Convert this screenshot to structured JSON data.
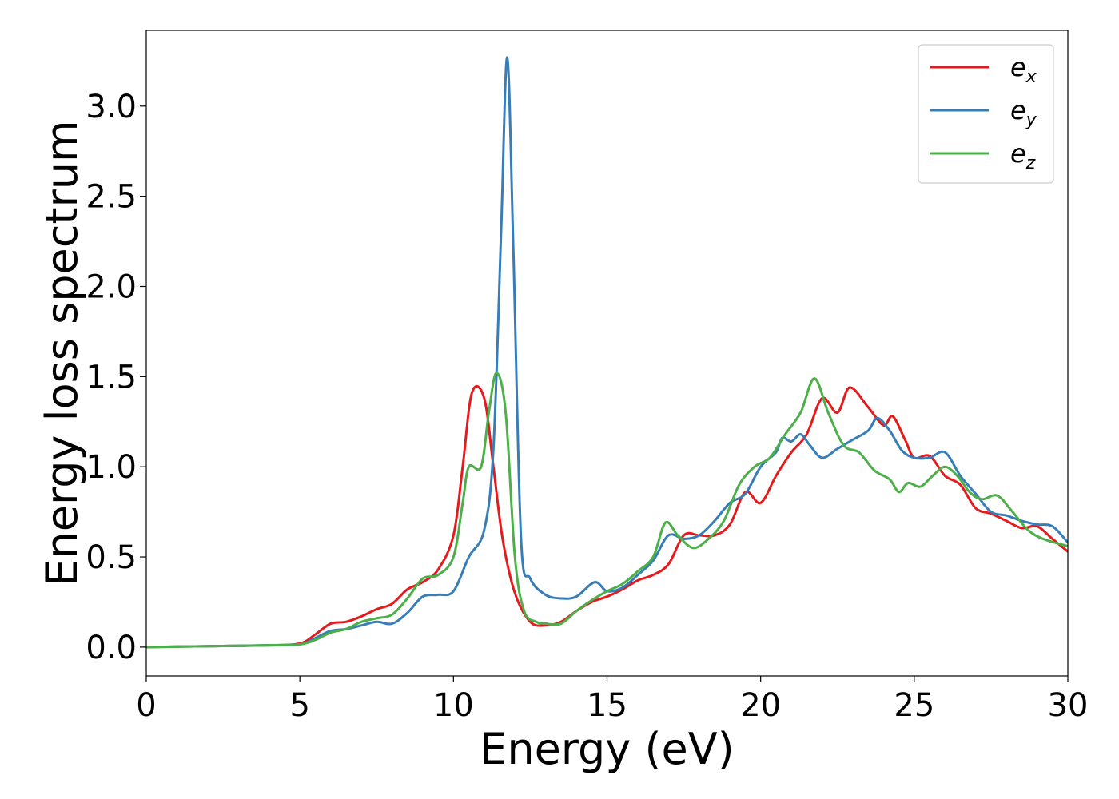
{
  "chart_data": {
    "type": "line",
    "title": "",
    "xlabel": "Energy (eV)",
    "ylabel": "Energy loss spectrum",
    "xlim": [
      0,
      30
    ],
    "ylim": [
      -0.16,
      3.42
    ],
    "xticks": [
      0,
      5,
      10,
      15,
      20,
      25,
      30
    ],
    "xtick_labels": [
      "0",
      "5",
      "10",
      "15",
      "20",
      "25",
      "30"
    ],
    "yticks": [
      0.0,
      0.5,
      1.0,
      1.5,
      2.0,
      2.5,
      3.0
    ],
    "ytick_labels": [
      "0.0",
      "0.5",
      "1.0",
      "1.5",
      "2.0",
      "2.5",
      "3.0"
    ],
    "grid": false,
    "legend_position": "top-right",
    "series": [
      {
        "name": "e_x",
        "legend_main": "e",
        "legend_sub": "x",
        "color": "#e41a1c",
        "x": [
          0,
          2,
          4,
          5,
          5.5,
          6,
          6.5,
          7,
          7.5,
          8,
          8.5,
          9,
          9.5,
          10,
          10.3,
          10.6,
          11,
          11.3,
          11.6,
          12,
          12.5,
          13,
          13.5,
          14,
          14.5,
          15,
          15.5,
          16,
          16.5,
          17,
          17.5,
          18,
          18.5,
          19,
          19.5,
          20,
          20.5,
          21,
          21.5,
          22,
          22.5,
          22.9,
          23.5,
          24,
          24.3,
          24.7,
          25,
          25.5,
          26,
          26.5,
          27,
          27.5,
          28,
          28.5,
          29,
          29.5,
          30
        ],
        "y": [
          0.0,
          0.005,
          0.01,
          0.02,
          0.07,
          0.13,
          0.14,
          0.17,
          0.21,
          0.24,
          0.32,
          0.36,
          0.43,
          0.62,
          1.0,
          1.41,
          1.38,
          1.0,
          0.6,
          0.3,
          0.14,
          0.12,
          0.14,
          0.2,
          0.25,
          0.28,
          0.32,
          0.37,
          0.4,
          0.46,
          0.62,
          0.62,
          0.62,
          0.68,
          0.86,
          0.8,
          0.95,
          1.08,
          1.18,
          1.38,
          1.3,
          1.44,
          1.33,
          1.23,
          1.28,
          1.15,
          1.05,
          1.06,
          0.95,
          0.9,
          0.77,
          0.74,
          0.7,
          0.66,
          0.67,
          0.6,
          0.53
        ]
      },
      {
        "name": "e_y",
        "legend_main": "e",
        "legend_sub": "y",
        "color": "#377eb8",
        "x": [
          0,
          2,
          4,
          5,
          5.5,
          6,
          6.5,
          7,
          7.5,
          8,
          8.5,
          9,
          9.5,
          10,
          10.5,
          11,
          11.3,
          11.55,
          11.75,
          11.95,
          12.2,
          12.5,
          13,
          13.5,
          14,
          14.6,
          15,
          15.5,
          16,
          16.5,
          17,
          17.5,
          18,
          18.5,
          19,
          19.5,
          20,
          20.5,
          20.7,
          21,
          21.3,
          21.6,
          22,
          22.5,
          23,
          23.5,
          23.8,
          24.2,
          24.6,
          25,
          25.5,
          26,
          26.5,
          27,
          27.5,
          28,
          28.5,
          29,
          29.5,
          30
        ],
        "y": [
          0.0,
          0.005,
          0.01,
          0.015,
          0.05,
          0.09,
          0.1,
          0.12,
          0.14,
          0.13,
          0.19,
          0.28,
          0.29,
          0.31,
          0.5,
          0.65,
          1.1,
          2.3,
          3.27,
          2.2,
          0.6,
          0.38,
          0.29,
          0.27,
          0.28,
          0.36,
          0.31,
          0.33,
          0.4,
          0.48,
          0.62,
          0.6,
          0.62,
          0.7,
          0.8,
          0.85,
          1.0,
          1.08,
          1.16,
          1.14,
          1.18,
          1.12,
          1.05,
          1.1,
          1.15,
          1.2,
          1.27,
          1.2,
          1.09,
          1.05,
          1.05,
          1.08,
          0.95,
          0.85,
          0.75,
          0.73,
          0.7,
          0.68,
          0.67,
          0.58
        ]
      },
      {
        "name": "e_z",
        "legend_main": "e",
        "legend_sub": "z",
        "color": "#4daf4a",
        "x": [
          0,
          2,
          4,
          5,
          5.5,
          6,
          6.5,
          7,
          7.5,
          8,
          8.5,
          9,
          9.5,
          10,
          10.3,
          10.5,
          10.9,
          11.15,
          11.4,
          11.7,
          12,
          12.3,
          12.7,
          13,
          13.5,
          14,
          14.5,
          15,
          15.5,
          16,
          16.5,
          16.9,
          17.3,
          17.8,
          18.3,
          18.8,
          19.3,
          19.8,
          20.3,
          20.8,
          21.3,
          21.75,
          22.2,
          22.7,
          23.2,
          23.7,
          24.2,
          24.5,
          24.8,
          25.2,
          25.6,
          26,
          26.4,
          26.8,
          27.2,
          27.7,
          28.2,
          28.7,
          29.2,
          30
        ],
        "y": [
          0.0,
          0.005,
          0.01,
          0.015,
          0.04,
          0.08,
          0.1,
          0.14,
          0.16,
          0.18,
          0.27,
          0.38,
          0.4,
          0.5,
          0.8,
          1.0,
          1.0,
          1.3,
          1.52,
          1.3,
          0.5,
          0.2,
          0.14,
          0.13,
          0.13,
          0.2,
          0.26,
          0.31,
          0.35,
          0.42,
          0.5,
          0.69,
          0.62,
          0.55,
          0.6,
          0.7,
          0.9,
          1.0,
          1.05,
          1.18,
          1.3,
          1.49,
          1.3,
          1.12,
          1.08,
          0.98,
          0.93,
          0.86,
          0.91,
          0.89,
          0.95,
          1.0,
          0.95,
          0.86,
          0.82,
          0.84,
          0.75,
          0.65,
          0.6,
          0.56
        ]
      }
    ]
  }
}
